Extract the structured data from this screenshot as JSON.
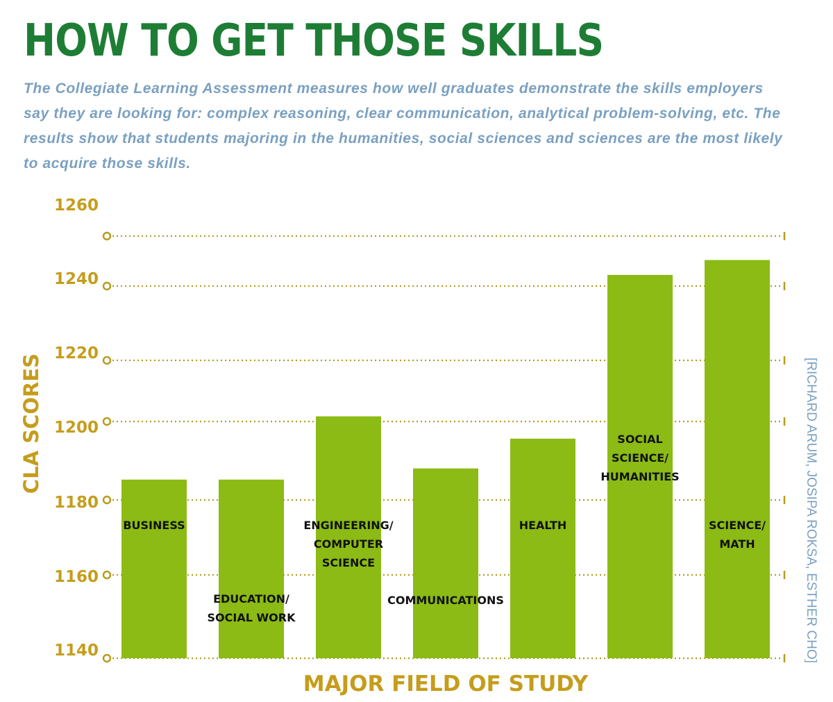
{
  "title": "HOW TO GET THOSE SKILLS",
  "subtitle": "The Collegiate Learning Assessment measures how well graduates demonstrate the skills employers say they are looking for: complex reasoning, clear communication, analytical problem-solving, etc. The results show that students majoring in the humanities, social sciences and sciences are the most likely to acquire those skills.",
  "credit": "[RICHARD ARUM, JOSIPA ROKSA, ESTHER CHO]",
  "colors": {
    "title": "#1e7d35",
    "subtitle": "#7aa0c1",
    "axis": "#c59d1c",
    "bar": "#8bbb14",
    "grid": "#b79c1f"
  },
  "chart_data": {
    "type": "bar",
    "xlabel": "MAJOR FIELD OF STUDY",
    "ylabel": "CLA SCORES",
    "ylim": [
      1140,
      1260
    ],
    "yticks": [
      1260,
      1240,
      1220,
      1200,
      1180,
      1160,
      1140
    ],
    "grid": true,
    "categories": [
      [
        "BUSINESS"
      ],
      [
        "EDUCATION/",
        "SOCIAL WORK"
      ],
      [
        "ENGINEERING/",
        "COMPUTER",
        "SCIENCE"
      ],
      [
        "COMMUNICATIONS"
      ],
      [
        "HEALTH"
      ],
      [
        "SOCIAL",
        "SCIENCE/",
        "HUMANITIES"
      ],
      [
        "SCIENCE/",
        "MATH"
      ]
    ],
    "values": [
      1188,
      1188,
      1205,
      1191,
      1199,
      1243,
      1247
    ]
  }
}
